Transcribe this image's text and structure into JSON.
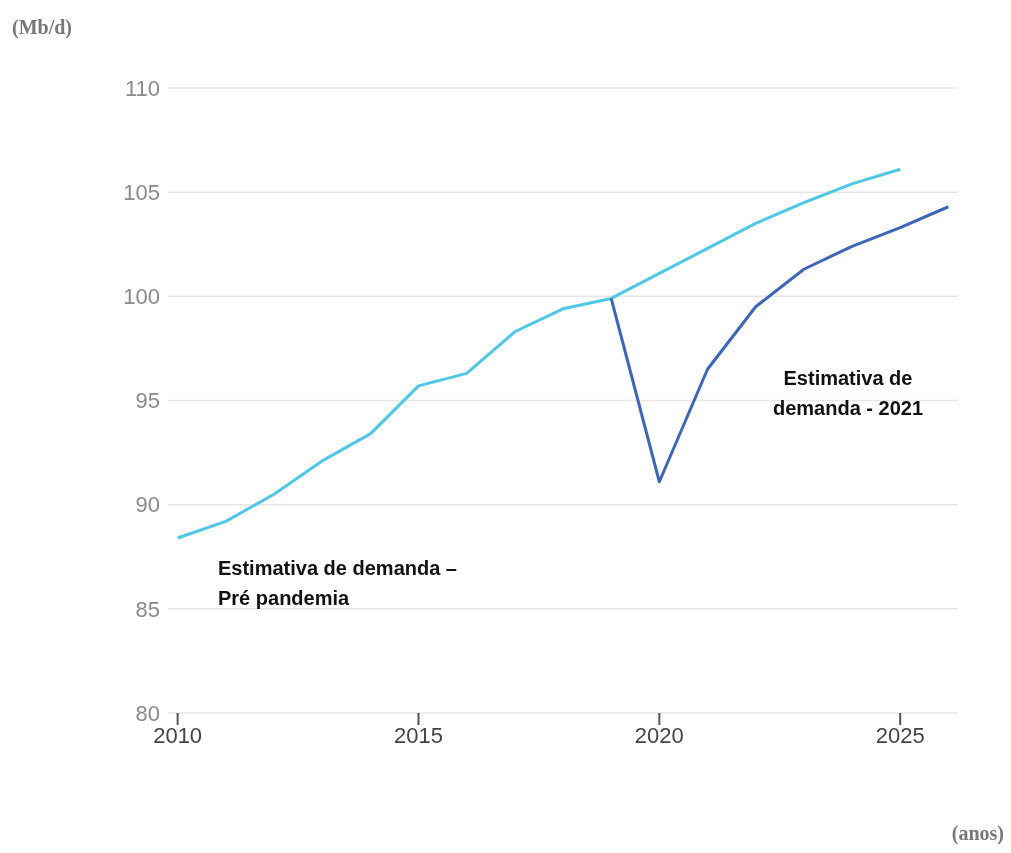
{
  "chart_data": {
    "type": "line",
    "ylabel": "(Mb/d)",
    "xlabel": "(anos)",
    "xlim": [
      2009.8,
      2026.2
    ],
    "xticks": [
      2010,
      2015,
      2020,
      2025
    ],
    "ylim": [
      80,
      110
    ],
    "yticks": [
      80,
      85,
      90,
      95,
      100,
      105,
      110
    ],
    "grid": "y",
    "marker": "none",
    "line_style": "solid",
    "series": [
      {
        "name": "Estimativa de demanda – Pré pandemia",
        "color": "#4fc8e8",
        "x": [
          2010,
          2011,
          2012,
          2013,
          2014,
          2015,
          2016,
          2017,
          2018,
          2019,
          2020,
          2021,
          2022,
          2023,
          2024,
          2025
        ],
        "values": [
          88.4,
          89.2,
          90.5,
          92.1,
          93.4,
          95.7,
          96.3,
          98.3,
          99.4,
          99.9,
          101.1,
          102.3,
          103.5,
          104.5,
          105.4,
          106.1
        ]
      },
      {
        "name": "Estimativa de demanda - 2021",
        "color": "#3e66b8",
        "x": [
          2019,
          2020,
          2021,
          2022,
          2023,
          2024,
          2025,
          2026
        ],
        "values": [
          99.9,
          91.1,
          96.5,
          99.5,
          101.3,
          102.4,
          103.3,
          104.3
        ]
      }
    ]
  }
}
